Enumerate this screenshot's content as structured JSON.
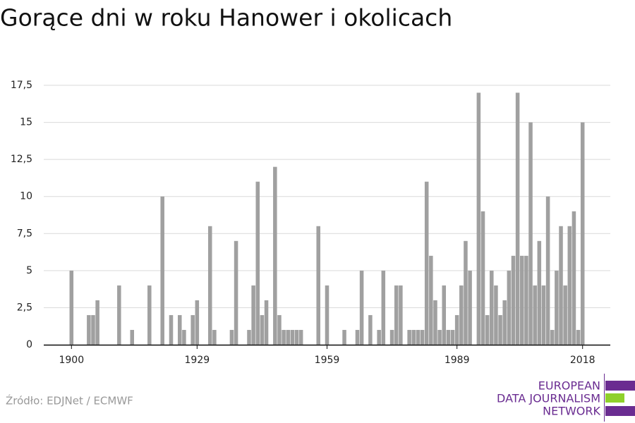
{
  "chart_data": {
    "type": "bar",
    "title": "Gorące dni w roku Hanower i okolicach",
    "x": [
      1900,
      1901,
      1902,
      1903,
      1904,
      1905,
      1906,
      1907,
      1908,
      1909,
      1910,
      1911,
      1912,
      1913,
      1914,
      1915,
      1916,
      1917,
      1918,
      1919,
      1920,
      1921,
      1922,
      1923,
      1924,
      1925,
      1926,
      1927,
      1928,
      1929,
      1930,
      1931,
      1932,
      1933,
      1934,
      1935,
      1936,
      1937,
      1938,
      1939,
      1940,
      1941,
      1942,
      1943,
      1944,
      1945,
      1946,
      1947,
      1948,
      1949,
      1950,
      1951,
      1952,
      1953,
      1954,
      1955,
      1956,
      1957,
      1958,
      1959,
      1960,
      1961,
      1962,
      1963,
      1964,
      1965,
      1966,
      1967,
      1968,
      1969,
      1970,
      1971,
      1972,
      1973,
      1974,
      1975,
      1976,
      1977,
      1978,
      1979,
      1980,
      1981,
      1982,
      1983,
      1984,
      1985,
      1986,
      1987,
      1988,
      1989,
      1990,
      1991,
      1992,
      1993,
      1994,
      1995,
      1996,
      1997,
      1998,
      1999,
      2000,
      2001,
      2002,
      2003,
      2004,
      2005,
      2006,
      2007,
      2008,
      2009,
      2010,
      2011,
      2012,
      2013,
      2014,
      2015,
      2016,
      2017,
      2018
    ],
    "values": [
      5,
      0,
      0,
      0,
      2,
      2,
      3,
      0,
      0,
      0,
      0,
      4,
      0,
      0,
      1,
      0,
      0,
      0,
      4,
      0,
      0,
      10,
      0,
      2,
      0,
      2,
      1,
      0,
      2,
      3,
      0,
      0,
      8,
      1,
      0,
      0,
      0,
      1,
      7,
      0,
      0,
      1,
      4,
      11,
      2,
      3,
      0,
      12,
      2,
      1,
      1,
      1,
      1,
      1,
      0,
      0,
      0,
      8,
      0,
      4,
      0,
      0,
      0,
      1,
      0,
      0,
      1,
      5,
      0,
      2,
      0,
      1,
      5,
      0,
      1,
      4,
      4,
      0,
      1,
      1,
      1,
      1,
      11,
      6,
      3,
      1,
      4,
      1,
      1,
      2,
      4,
      7,
      5,
      0,
      17,
      9,
      2,
      5,
      4,
      2,
      3,
      5,
      6,
      17,
      6,
      6,
      15,
      4,
      7,
      4,
      10,
      1,
      5,
      8,
      4,
      8,
      9,
      1,
      15
    ],
    "color": "#a0a0a0",
    "xlim": [
      1893.6,
      2024.4
    ],
    "xticks": [
      1900,
      1929,
      1959,
      1989,
      2018
    ],
    "ylim": [
      0,
      17.5
    ],
    "yticks": [
      0,
      {
        "value": 2.5,
        "label": "2,5"
      },
      5,
      {
        "value": 7.5,
        "label": "7,5"
      },
      10,
      {
        "value": 12.5,
        "label": "12,5"
      },
      15,
      {
        "value": 17.5,
        "label": "17,5"
      }
    ],
    "grid": true
  },
  "source": "Źródło: EDJNet / ECMWF",
  "logo": [
    "EUROPEAN",
    "DATA JOURNALISM",
    "NETWORK"
  ]
}
